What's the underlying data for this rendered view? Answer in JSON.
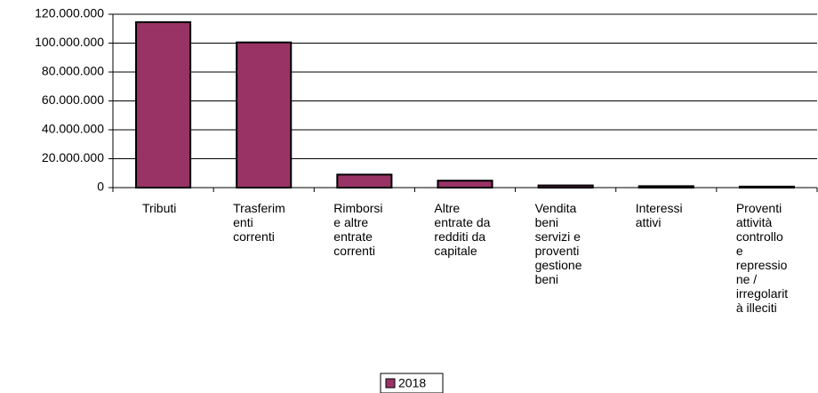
{
  "chart_data": {
    "type": "bar",
    "categories": [
      "Tributi",
      "Trasferim\nenti\ncorrenti",
      "Rimborsi\ne altre\nentrate\ncorrenti",
      "Altre\nentrate da\nredditi da\ncapitale",
      "Vendita\nbeni\nservizi e\nproventi\ngestione\nbeni",
      "Interessi\nattivi",
      "Proventi\nattività\ncontrollo\ne\nrepressio\nne /\nirregolarit\nà illeciti"
    ],
    "series": [
      {
        "name": "2018",
        "color": "#993366",
        "values": [
          114500000,
          100500000,
          9000000,
          4800000,
          1500000,
          1000000,
          700000
        ]
      }
    ],
    "ylim": [
      0,
      120000000
    ],
    "yticks": [
      0,
      {
        "value": 20000000,
        "label": "20.000.000"
      },
      {
        "value": 40000000,
        "label": "40.000.000"
      },
      {
        "value": 60000000,
        "label": "60.000.000"
      },
      {
        "value": 80000000,
        "label": "80.000.000"
      },
      {
        "value": 100000000,
        "label": "100.000.000"
      },
      {
        "value": 120000000,
        "label": "120.000.000"
      }
    ],
    "grid": true,
    "legend": "bottom"
  }
}
